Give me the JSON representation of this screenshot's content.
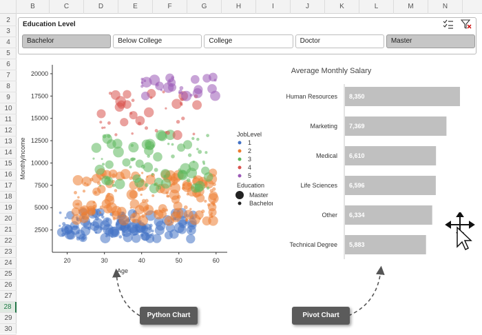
{
  "columns": [
    "B",
    "C",
    "D",
    "E",
    "F",
    "G",
    "H",
    "I",
    "J",
    "K",
    "L",
    "M",
    "N"
  ],
  "rows": [
    "2",
    "3",
    "4",
    "5",
    "6",
    "7",
    "8",
    "9",
    "10",
    "11",
    "12",
    "13",
    "14",
    "15",
    "16",
    "17",
    "18",
    "19",
    "20",
    "21",
    "22",
    "23",
    "24",
    "25",
    "26",
    "27",
    "28",
    "29",
    "30"
  ],
  "selected_row": "28",
  "slicer": {
    "title": "Education Level",
    "buttons": [
      {
        "label": "Bachelor",
        "selected": true
      },
      {
        "label": "Below College",
        "selected": false
      },
      {
        "label": "College",
        "selected": false
      },
      {
        "label": "Doctor",
        "selected": false
      },
      {
        "label": "Master",
        "selected": true
      }
    ],
    "icons": [
      "multi-select-icon",
      "clear-filter-icon"
    ]
  },
  "chart_data": [
    {
      "type": "scatter",
      "title": "",
      "xlabel": "Age",
      "ylabel": "MonthlyIncome",
      "xlim": [
        16,
        63
      ],
      "ylim": [
        0,
        21000
      ],
      "xticks": [
        20,
        30,
        40,
        50,
        60
      ],
      "yticks": [
        2500,
        5000,
        7500,
        10000,
        12500,
        15000,
        17500,
        20000
      ],
      "legend_placement": "right",
      "legend": {
        "joblevel_title": "JobLevel",
        "joblevel_items": [
          {
            "label": "1",
            "color": "#4472c4"
          },
          {
            "label": "2",
            "color": "#ed7d31"
          },
          {
            "label": "3",
            "color": "#5cb85c"
          },
          {
            "label": "4",
            "color": "#d9534f"
          },
          {
            "label": "5",
            "color": "#9b59b6"
          }
        ],
        "education_title": "Education",
        "education_items": [
          {
            "label": "Master",
            "size": "large"
          },
          {
            "label": "Bachelor",
            "size": "small"
          }
        ]
      },
      "series": [
        {
          "name": "1",
          "color": "#4472c4",
          "y_range": [
            1500,
            4500
          ],
          "x_range": [
            18,
            55
          ]
        },
        {
          "name": "2",
          "color": "#ed7d31",
          "y_range": [
            3500,
            9000
          ],
          "x_range": [
            22,
            60
          ]
        },
        {
          "name": "3",
          "color": "#5cb85c",
          "y_range": [
            7000,
            13500
          ],
          "x_range": [
            26,
            58
          ]
        },
        {
          "name": "4",
          "color": "#d9534f",
          "y_range": [
            13000,
            18000
          ],
          "x_range": [
            29,
            56
          ]
        },
        {
          "name": "5",
          "color": "#9b59b6",
          "y_range": [
            17500,
            20000
          ],
          "x_range": [
            40,
            60
          ]
        }
      ]
    },
    {
      "type": "bar",
      "orientation": "horizontal",
      "title": "Average Monthly Salary",
      "categories": [
        "Human Resources",
        "Marketing",
        "Medical",
        "Life Sciences",
        "Other",
        "Technical Degree"
      ],
      "values": [
        8350,
        7369,
        6610,
        6596,
        6334,
        5883
      ],
      "value_labels": [
        "8,350",
        "7,369",
        "6,610",
        "6,596",
        "6,334",
        "5,883"
      ],
      "color": "#c0c0c0",
      "xlim": [
        0,
        9000
      ]
    }
  ],
  "buttons": {
    "python_chart": "Python Chart",
    "pivot_chart": "Pivot Chart"
  }
}
